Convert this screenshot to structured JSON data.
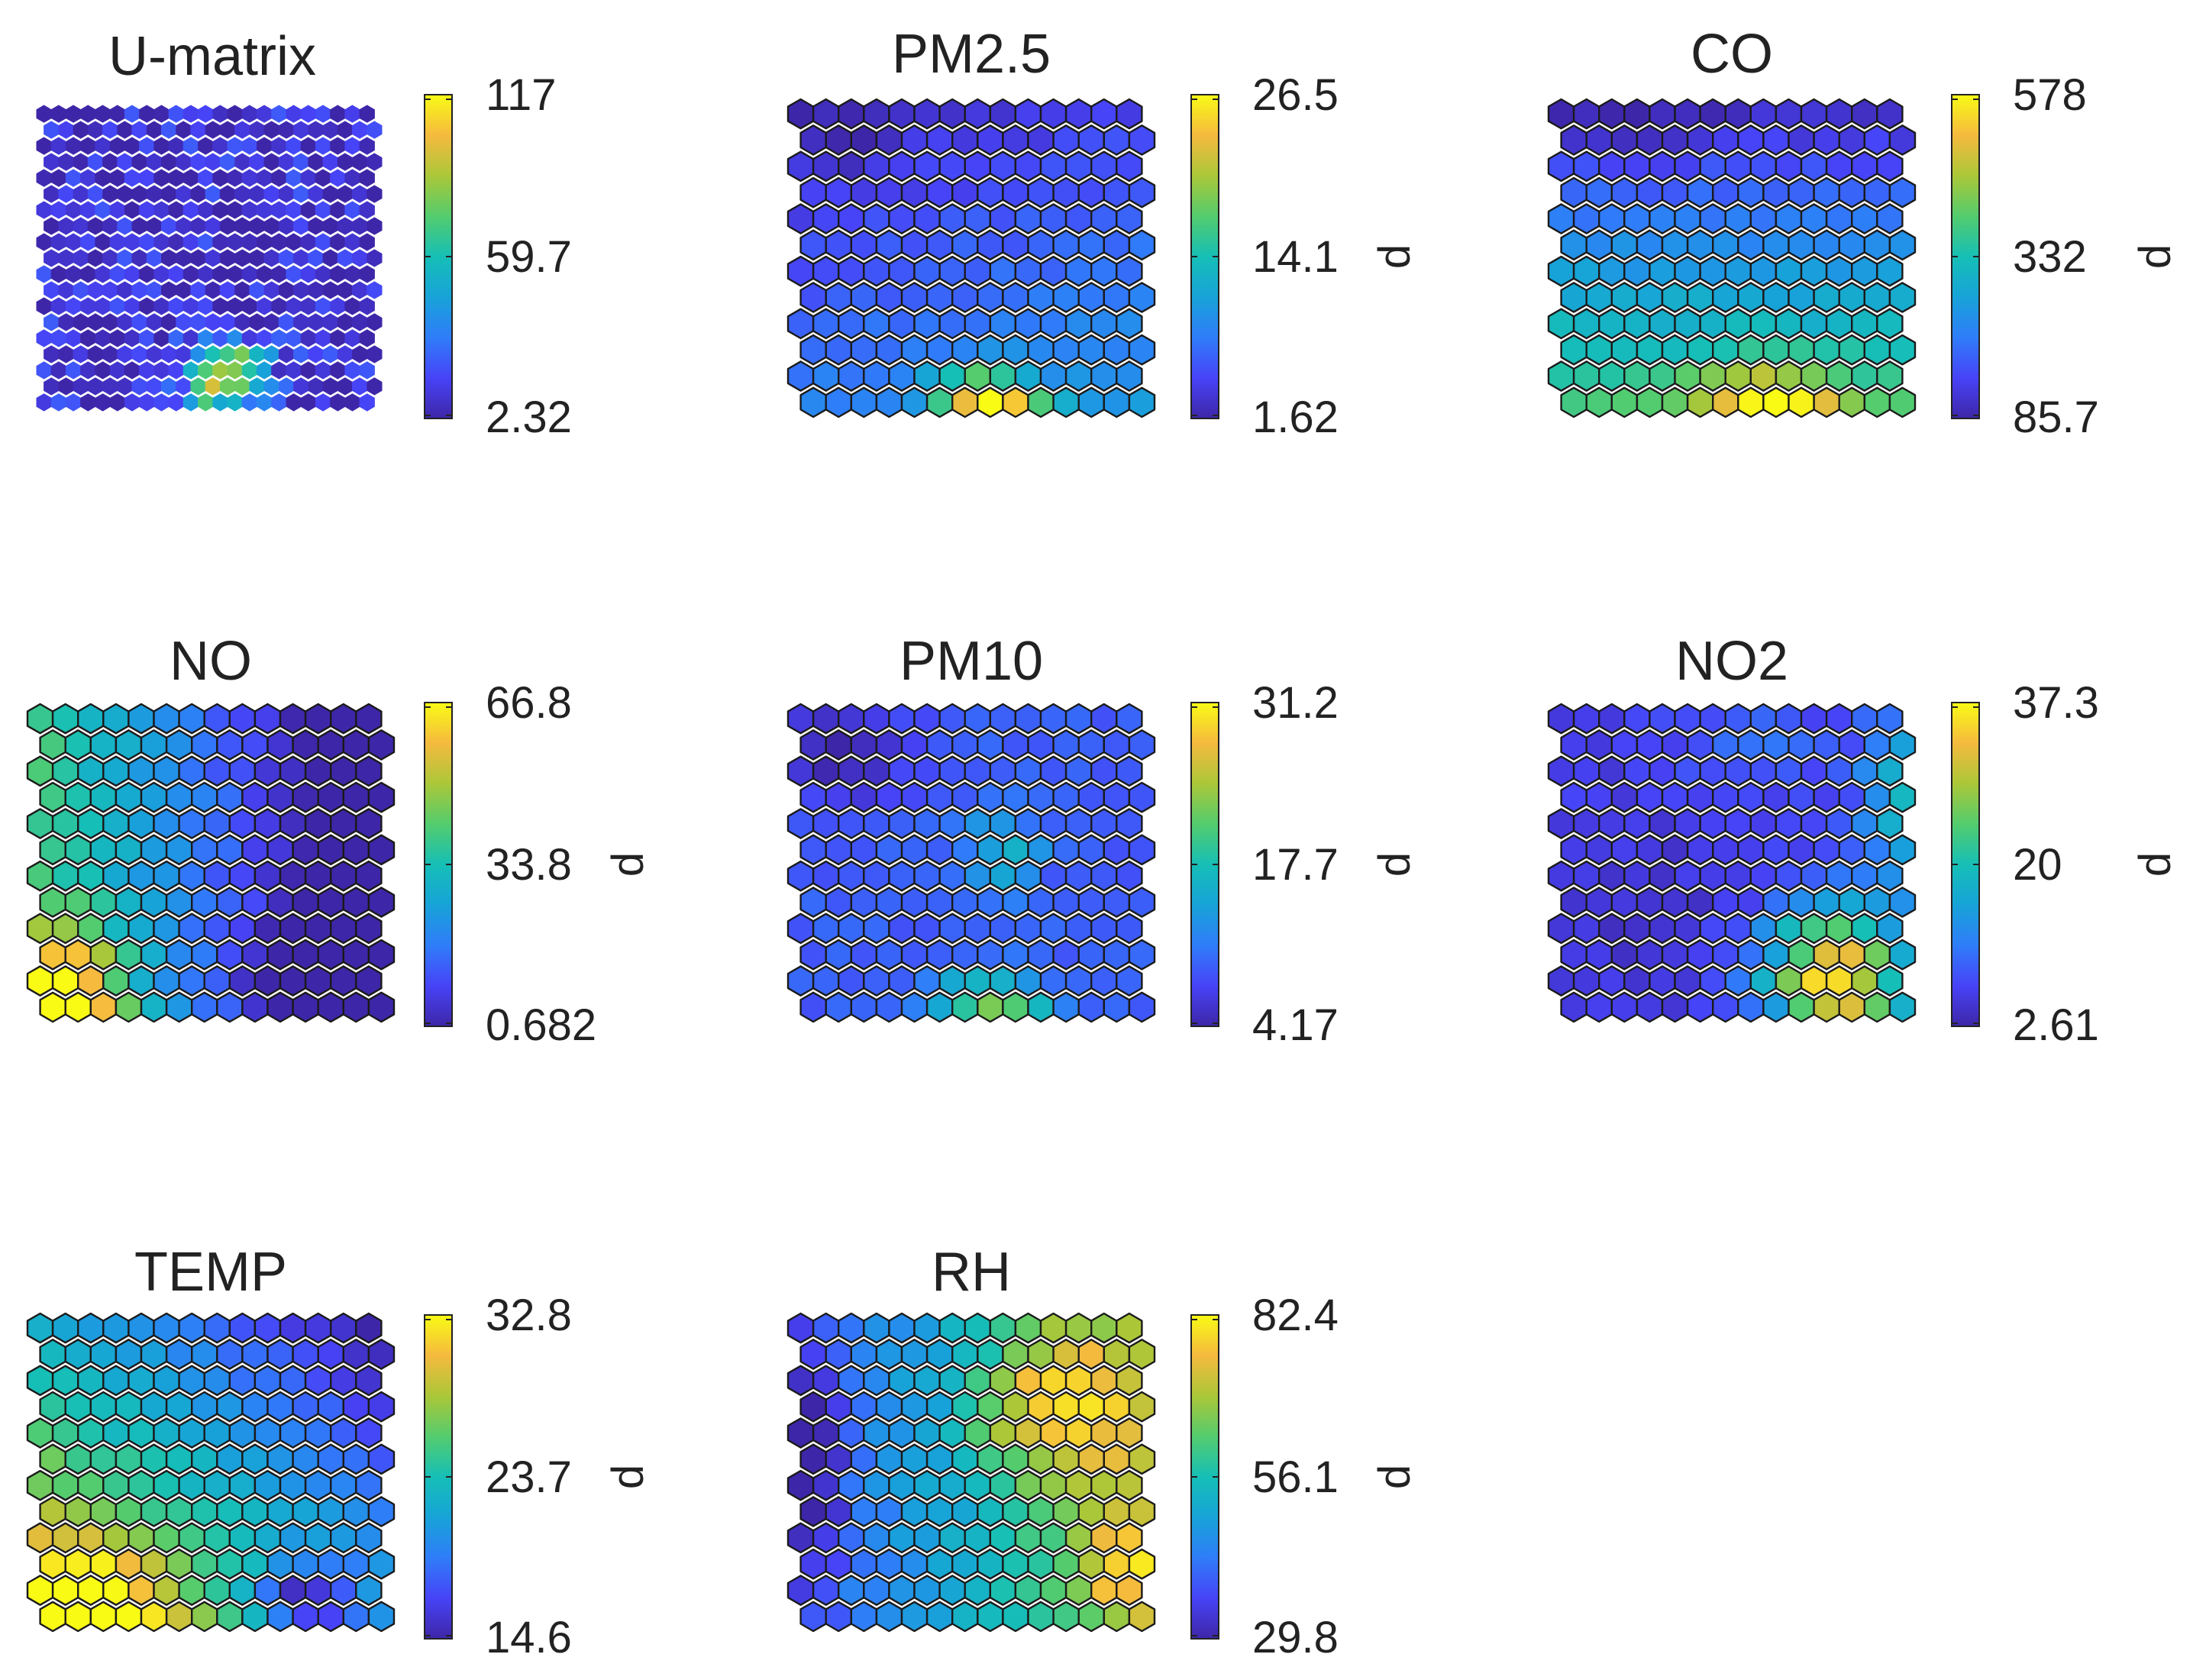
{
  "figure": {
    "description_free": true,
    "colormap": "parula",
    "colormap_stops": [
      "#3e26a8",
      "#4743f7",
      "#2f7df9",
      "#17a3d8",
      "#16bfb6",
      "#54cc6e",
      "#abc738",
      "#f5ba3e",
      "#f9fb15"
    ]
  },
  "chart_data": [
    {
      "type": "heatmap",
      "title": "U-matrix",
      "colorbar": {
        "ticks": [
          "117",
          "59.7",
          "2.32"
        ],
        "min": 2.32,
        "mid": 59.7,
        "max": 117,
        "label": ""
      },
      "grid": {
        "rows": 19,
        "cols": 23,
        "lattice": "hexagonal",
        "edges": false
      },
      "pattern": {
        "base": 0.05,
        "blobs": [
          {
            "c": 12.5,
            "r": 16.2,
            "amp": 0.75,
            "sc": 2.4,
            "sr": 2.0
          },
          {
            "c": 10.5,
            "r": 17.5,
            "amp": 0.35,
            "sc": 1.5,
            "sr": 1.2
          }
        ],
        "noise": 0.13
      }
    },
    {
      "type": "heatmap",
      "title": "PM2.5",
      "colorbar": {
        "ticks": [
          "26.5",
          "14.1",
          "1.62"
        ],
        "min": 1.62,
        "mid": 14.1,
        "max": 26.5,
        "label": "d"
      },
      "grid": {
        "rows": 12,
        "cols": 14,
        "lattice": "hexagonal",
        "edges": true
      },
      "pattern": {
        "base": 0.06,
        "gy": [
          0.0,
          0.22
        ],
        "gx": [
          -0.02,
          0.06
        ],
        "blobs": [
          {
            "c": 7.0,
            "r": 11.2,
            "amp": 0.75,
            "sc": 2.0,
            "sr": 1.3
          },
          {
            "c": 1.5,
            "r": 0.8,
            "amp": -0.06,
            "sc": 2.0,
            "sr": 1.5
          }
        ],
        "noise": 0.03
      }
    },
    {
      "type": "heatmap",
      "title": "CO",
      "colorbar": {
        "ticks": [
          "578",
          "332",
          "85.7"
        ],
        "min": 85.7,
        "mid": 332,
        "max": 578,
        "label": "d"
      },
      "grid": {
        "rows": 12,
        "cols": 14,
        "lattice": "hexagonal",
        "edges": true
      },
      "pattern": {
        "base": 0.05,
        "gy": [
          0.0,
          0.55
        ],
        "blobs": [
          {
            "c": 8.0,
            "r": 11.3,
            "amp": 0.45,
            "sc": 2.6,
            "sr": 1.5
          },
          {
            "c": 2.5,
            "r": 0.5,
            "amp": -0.06,
            "sc": 2.5,
            "sr": 1.5
          }
        ],
        "noise": 0.03
      }
    },
    {
      "type": "heatmap",
      "title": "NO",
      "colorbar": {
        "ticks": [
          "66.8",
          "33.8",
          "0.682"
        ],
        "min": 0.682,
        "mid": 33.8,
        "max": 66.8,
        "label": "d"
      },
      "grid": {
        "rows": 12,
        "cols": 14,
        "lattice": "hexagonal",
        "edges": true
      },
      "pattern": {
        "base": 0.22,
        "gx": [
          0.36,
          -0.36
        ],
        "blobs": [
          {
            "c": 0.8,
            "r": 10.8,
            "amp": 0.58,
            "sc": 2.2,
            "sr": 2.6
          },
          {
            "c": 10.5,
            "r": 9.8,
            "amp": -0.2,
            "sc": 2.4,
            "sr": 2.4
          }
        ],
        "noise": 0.03
      }
    },
    {
      "type": "heatmap",
      "title": "PM10",
      "colorbar": {
        "ticks": [
          "31.2",
          "17.7",
          "4.17"
        ],
        "min": 4.17,
        "mid": 17.7,
        "max": 31.2,
        "label": "d"
      },
      "grid": {
        "rows": 12,
        "cols": 14,
        "lattice": "hexagonal",
        "edges": true
      },
      "pattern": {
        "base": 0.18,
        "blobs": [
          {
            "c": 7.2,
            "r": 11.0,
            "amp": 0.52,
            "sc": 2.2,
            "sr": 1.2
          },
          {
            "c": 7.8,
            "r": 5.2,
            "amp": 0.28,
            "sc": 1.3,
            "sr": 1.8
          },
          {
            "c": 1.5,
            "r": 1.2,
            "amp": -0.18,
            "sc": 2.6,
            "sr": 2.0
          }
        ],
        "noise": 0.03
      }
    },
    {
      "type": "heatmap",
      "title": "NO2",
      "colorbar": {
        "ticks": [
          "37.3",
          "20",
          "2.61"
        ],
        "min": 2.61,
        "mid": 20,
        "max": 37.3,
        "label": "d"
      },
      "grid": {
        "rows": 12,
        "cols": 14,
        "lattice": "hexagonal",
        "edges": true
      },
      "pattern": {
        "base": 0.1,
        "blobs": [
          {
            "c": 10.6,
            "r": 10.0,
            "amp": 0.85,
            "sc": 2.6,
            "sr": 2.8
          },
          {
            "c": 13.0,
            "r": 3.0,
            "amp": 0.36,
            "sc": 1.4,
            "sr": 3.2
          },
          {
            "c": 7.5,
            "r": 1.0,
            "amp": 0.12,
            "sc": 3.0,
            "sr": 1.6
          },
          {
            "c": 3.0,
            "r": 7.5,
            "amp": -0.05,
            "sc": 2.6,
            "sr": 2.6
          }
        ],
        "noise": 0.03
      }
    },
    {
      "type": "heatmap",
      "title": "TEMP",
      "colorbar": {
        "ticks": [
          "32.8",
          "23.7",
          "14.6"
        ],
        "min": 14.6,
        "mid": 23.7,
        "max": 32.8,
        "label": "d"
      },
      "grid": {
        "rows": 12,
        "cols": 14,
        "lattice": "hexagonal",
        "edges": true
      },
      "pattern": {
        "base": 0.12,
        "gy": [
          0.0,
          0.42
        ],
        "gx": [
          0.32,
          -0.12
        ],
        "blobs": [
          {
            "c": 1.5,
            "r": 10.8,
            "amp": 0.42,
            "sc": 3.0,
            "sr": 2.6
          },
          {
            "c": 10.3,
            "r": 10.5,
            "amp": -0.48,
            "sc": 2.0,
            "sr": 1.6
          }
        ],
        "noise": 0.03
      }
    },
    {
      "type": "heatmap",
      "title": "RH",
      "colorbar": {
        "ticks": [
          "82.4",
          "56.1",
          "29.8"
        ],
        "min": 29.8,
        "mid": 56.1,
        "max": 82.4,
        "label": "d"
      },
      "grid": {
        "rows": 12,
        "cols": 14,
        "lattice": "hexagonal",
        "edges": true
      },
      "pattern": {
        "base": 0.18,
        "gx": [
          0.0,
          0.5
        ],
        "blobs": [
          {
            "c": 10.0,
            "r": 3.0,
            "amp": 0.4,
            "sc": 3.0,
            "sr": 3.0
          },
          {
            "c": 12.5,
            "r": 9.0,
            "amp": 0.3,
            "sc": 1.6,
            "sr": 2.2
          },
          {
            "c": 0.2,
            "r": 5.0,
            "amp": -0.28,
            "sc": 1.2,
            "sr": 4.0
          }
        ],
        "noise": 0.04
      }
    }
  ]
}
